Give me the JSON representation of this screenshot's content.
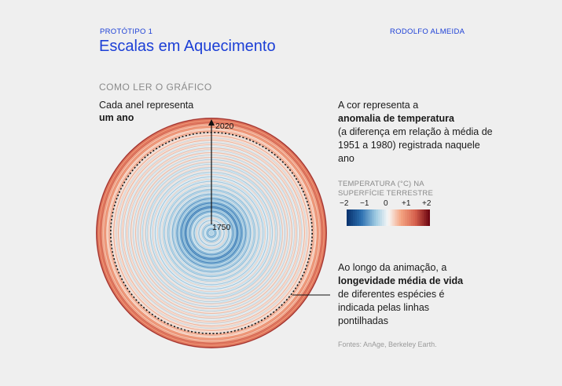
{
  "header": {
    "prototype_label": "PROTÓTIPO 1",
    "author": "RODOLFO ALMEIDA",
    "title": "Escalas em Aquecimento"
  },
  "guide": {
    "heading": "COMO LER O GRÁFICO",
    "ring_text_a": "Cada anel representa",
    "ring_text_b": "um ano",
    "color_text_a": "A cor representa a",
    "color_text_b": "anomalia de temperatura",
    "color_text_c": "(a diferença em relação à média de 1951 a 1980) registrada naquele ano",
    "life_text_a": "Ao longo da animação, a",
    "life_text_b": "longevidade média de vida",
    "life_text_c": "de diferentes espécies é indicada pelas linhas pontilhadas"
  },
  "legend": {
    "title": "TEMPERATURA (°C) NA SUPERFÍCIE TERRESTRE",
    "ticks": [
      "−2",
      "−1",
      "0",
      "+1",
      "+2"
    ],
    "tick_values": [
      -2,
      -1,
      0,
      1,
      2
    ],
    "colors": {
      "cold_dark": "#08306b",
      "cold": "#2c6fb0",
      "cool": "#9ecae1",
      "neutral": "#f7f7f7",
      "warm": "#f4a582",
      "hot": "#d6604d",
      "hot_dark": "#67000d"
    }
  },
  "source": "Fontes: AnAge, Berkeley Earth.",
  "chart_data": {
    "type": "radial-stripes",
    "title": "Escalas em Aquecimento",
    "start_year": 1750,
    "end_year": 2020,
    "start_label": "1750",
    "end_label": "2020",
    "variable": "temperature anomaly (°C) vs 1951–1980",
    "anomaly_range": [
      -2,
      2
    ],
    "dotted_ring_year": 1985,
    "anomaly_keyframes": [
      {
        "year": 1750,
        "value": -0.6
      },
      {
        "year": 1780,
        "value": -0.2
      },
      {
        "year": 1810,
        "value": -0.9
      },
      {
        "year": 1840,
        "value": -0.4
      },
      {
        "year": 1870,
        "value": -0.2
      },
      {
        "year": 1900,
        "value": -0.15
      },
      {
        "year": 1930,
        "value": 0.0
      },
      {
        "year": 1960,
        "value": 0.05
      },
      {
        "year": 1980,
        "value": 0.2
      },
      {
        "year": 2000,
        "value": 0.6
      },
      {
        "year": 2020,
        "value": 1.3
      }
    ]
  }
}
